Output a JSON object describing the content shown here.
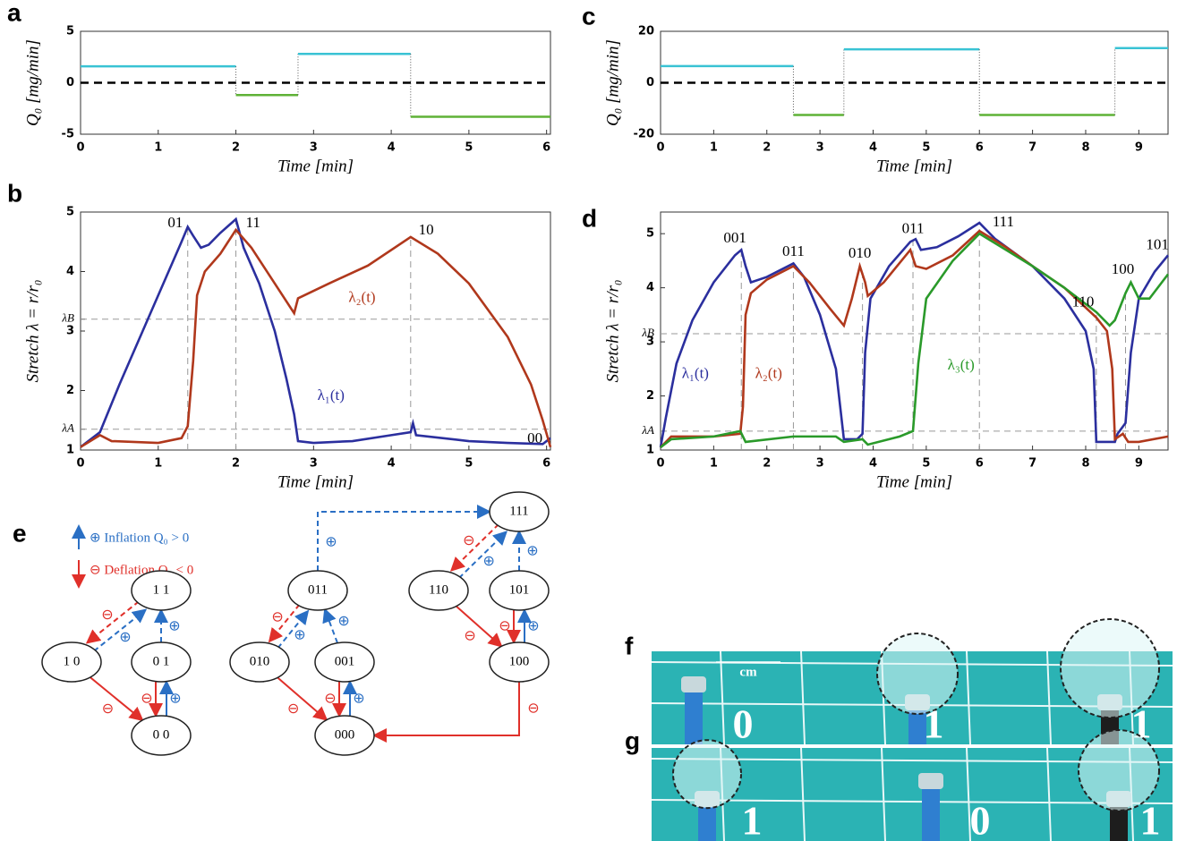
{
  "panel_labels": [
    "a",
    "b",
    "c",
    "d",
    "e",
    "f",
    "g"
  ],
  "chart_data": [
    {
      "type": "step",
      "x_label": "Time   [min]",
      "y_label": "Q₀  [mg/min]",
      "xlim": [
        0,
        6.05
      ],
      "xticks": [
        0,
        1,
        2,
        3,
        4,
        5,
        6
      ],
      "ylim": [
        -5,
        5
      ],
      "yticks": [
        -5,
        0,
        5
      ],
      "reference_line": 0,
      "series": [
        {
          "color": "#39c3d4",
          "x": [
            0,
            2
          ],
          "values": [
            1.6,
            1.6
          ]
        },
        {
          "color": "#5fb236",
          "x": [
            2,
            2.8
          ],
          "values": [
            -1.2,
            -1.2
          ]
        },
        {
          "color": "#39c3d4",
          "x": [
            2.8,
            4.25
          ],
          "values": [
            2.8,
            2.8
          ]
        },
        {
          "color": "#5fb236",
          "x": [
            4.25,
            6.05
          ],
          "values": [
            -3.3,
            -3.3
          ]
        }
      ]
    },
    {
      "type": "line",
      "x_label": "Time   [min]",
      "y_label": "Stretch   λ = r/r₀",
      "xlim": [
        0,
        6.05
      ],
      "xticks": [
        0,
        1,
        2,
        3,
        4,
        5,
        6
      ],
      "ylim": [
        1,
        5
      ],
      "yticks": [
        1,
        {
          "value": 1.35,
          "label": "λA"
        },
        2,
        3,
        {
          "value": 3.2,
          "label": "λB"
        },
        4,
        5
      ],
      "state_times": [
        1.38,
        2,
        4.25
      ],
      "annotations": [
        "01",
        "11",
        "10",
        "00"
      ],
      "series": [
        {
          "name": "λ₁(t)",
          "color": "#2b2f9e",
          "x": [
            0,
            0.25,
            0.5,
            0.8,
            1.1,
            1.3,
            1.38,
            1.45,
            1.55,
            1.65,
            1.8,
            2.0,
            2.1,
            2.3,
            2.5,
            2.65,
            2.75,
            2.8,
            3.0,
            3.5,
            4.0,
            4.25,
            4.28,
            4.32,
            5.0,
            5.5,
            5.95,
            6.05
          ],
          "values": [
            1.05,
            1.3,
            2.1,
            3.0,
            3.9,
            4.5,
            4.75,
            4.6,
            4.4,
            4.45,
            4.65,
            4.88,
            4.4,
            3.8,
            3.0,
            2.2,
            1.6,
            1.15,
            1.12,
            1.15,
            1.25,
            1.3,
            1.45,
            1.25,
            1.15,
            1.12,
            1.1,
            1.2
          ]
        },
        {
          "name": "λ₂(t)",
          "color": "#b0381c",
          "x": [
            0,
            0.25,
            0.4,
            1.0,
            1.3,
            1.38,
            1.45,
            1.5,
            1.6,
            1.8,
            2.0,
            2.2,
            2.5,
            2.75,
            2.8,
            3.2,
            3.7,
            4.25,
            4.6,
            5.0,
            5.5,
            5.8,
            5.95,
            6.05
          ],
          "values": [
            1.05,
            1.25,
            1.15,
            1.12,
            1.2,
            1.4,
            2.5,
            3.6,
            4.0,
            4.3,
            4.7,
            4.4,
            3.8,
            3.3,
            3.55,
            3.8,
            4.1,
            4.58,
            4.3,
            3.8,
            2.9,
            2.1,
            1.5,
            1.05
          ]
        }
      ]
    },
    {
      "type": "step",
      "x_label": "Time   [min]",
      "y_label": "Q₀  [mg/min]",
      "xlim": [
        0,
        9.55
      ],
      "xticks": [
        0,
        1,
        2,
        3,
        4,
        5,
        6,
        7,
        8,
        9
      ],
      "ylim": [
        -20,
        20
      ],
      "yticks": [
        -20,
        0,
        20
      ],
      "reference_line": 0,
      "series": [
        {
          "color": "#39c3d4",
          "x": [
            0,
            2.5
          ],
          "values": [
            6.5,
            6.5
          ]
        },
        {
          "color": "#5fb236",
          "x": [
            2.5,
            3.45
          ],
          "values": [
            -12.5,
            -12.5
          ]
        },
        {
          "color": "#39c3d4",
          "x": [
            3.45,
            6
          ],
          "values": [
            13,
            13
          ]
        },
        {
          "color": "#5fb236",
          "x": [
            6,
            8.55
          ],
          "values": [
            -12.5,
            -12.5
          ]
        },
        {
          "color": "#39c3d4",
          "x": [
            8.55,
            9.55
          ],
          "values": [
            13.5,
            13.5
          ]
        }
      ]
    },
    {
      "type": "line",
      "x_label": "Time   [min]",
      "y_label": "Stretch   λ = r/r₀",
      "xlim": [
        0,
        9.55
      ],
      "xticks": [
        0,
        1,
        2,
        3,
        4,
        5,
        6,
        7,
        8,
        9
      ],
      "ylim": [
        1,
        5.4
      ],
      "yticks": [
        1,
        {
          "value": 1.35,
          "label": "λA"
        },
        2,
        3,
        {
          "value": 3.15,
          "label": "λB"
        },
        4,
        5
      ],
      "state_times": [
        1.52,
        2.5,
        3.8,
        4.75,
        6,
        8.2,
        8.75
      ],
      "annotations": [
        "001",
        "011",
        "010",
        "011",
        "111",
        "110",
        "100",
        "101"
      ],
      "series": [
        {
          "name": "λ₁(t)",
          "color": "#2b2f9e",
          "x": [
            0,
            0.1,
            0.3,
            0.6,
            1.0,
            1.4,
            1.52,
            1.6,
            1.7,
            2.0,
            2.5,
            2.7,
            3.0,
            3.3,
            3.45,
            3.7,
            3.8,
            3.85,
            3.95,
            4.3,
            4.7,
            4.8,
            4.9,
            5.2,
            5.6,
            6.0,
            6.3,
            7.0,
            7.6,
            8.0,
            8.15,
            8.2,
            8.55,
            8.6,
            8.75,
            8.85,
            9.0,
            9.3,
            9.55
          ],
          "values": [
            1.05,
            1.6,
            2.6,
            3.4,
            4.1,
            4.6,
            4.7,
            4.4,
            4.1,
            4.2,
            4.45,
            4.2,
            3.5,
            2.5,
            1.2,
            1.2,
            1.3,
            2.8,
            3.8,
            4.4,
            4.85,
            4.9,
            4.7,
            4.75,
            4.95,
            5.2,
            4.9,
            4.4,
            3.8,
            3.2,
            2.5,
            1.15,
            1.15,
            1.3,
            1.5,
            2.8,
            3.8,
            4.3,
            4.6
          ]
        },
        {
          "name": "λ₂(t)",
          "color": "#b0381c",
          "x": [
            0,
            0.2,
            1.0,
            1.5,
            1.55,
            1.6,
            1.7,
            2.0,
            2.5,
            2.8,
            3.2,
            3.45,
            3.6,
            3.75,
            3.85,
            3.9,
            4.2,
            4.7,
            4.8,
            5.0,
            5.5,
            6.0,
            6.5,
            7.0,
            7.6,
            8.2,
            8.4,
            8.5,
            8.55,
            8.7,
            8.8,
            9.0,
            9.55
          ],
          "values": [
            1.05,
            1.25,
            1.25,
            1.3,
            1.8,
            3.5,
            3.9,
            4.15,
            4.4,
            4.1,
            3.6,
            3.3,
            3.8,
            4.4,
            4.1,
            3.85,
            4.1,
            4.7,
            4.4,
            4.35,
            4.6,
            5.05,
            4.75,
            4.4,
            4.0,
            3.45,
            3.2,
            2.5,
            1.2,
            1.3,
            1.15,
            1.15,
            1.25
          ]
        },
        {
          "name": "λ₃(t)",
          "color": "#2a9a2a",
          "x": [
            0,
            0.2,
            1.0,
            1.5,
            1.6,
            2.5,
            3.3,
            3.45,
            3.8,
            3.9,
            4.5,
            4.75,
            4.85,
            5.0,
            5.5,
            6.0,
            6.5,
            7.0,
            7.6,
            8.2,
            8.45,
            8.55,
            8.75,
            8.85,
            9.0,
            9.2,
            9.55
          ],
          "values": [
            1.05,
            1.2,
            1.25,
            1.35,
            1.15,
            1.25,
            1.25,
            1.15,
            1.2,
            1.1,
            1.25,
            1.35,
            2.6,
            3.8,
            4.5,
            5.0,
            4.7,
            4.4,
            4.0,
            3.55,
            3.3,
            3.4,
            3.9,
            4.1,
            3.8,
            3.8,
            4.25
          ]
        }
      ]
    }
  ],
  "diagram": {
    "legend": [
      "⊕ Inflation Q₀ > 0",
      "⊖ Deflation Q₀ < 0"
    ],
    "symbols": {
      "plus": "⊕",
      "minus": "⊖"
    },
    "nodes": [
      "1 1",
      "1 0",
      "0 1",
      "0 0",
      "111",
      "011",
      "110",
      "101",
      "010",
      "001",
      "100",
      "000"
    ]
  },
  "photos": {
    "f": {
      "scale_label": "cm",
      "digits": [
        "0",
        "1",
        "1"
      ]
    },
    "g": {
      "digits": [
        "1",
        "0",
        "1"
      ]
    }
  }
}
